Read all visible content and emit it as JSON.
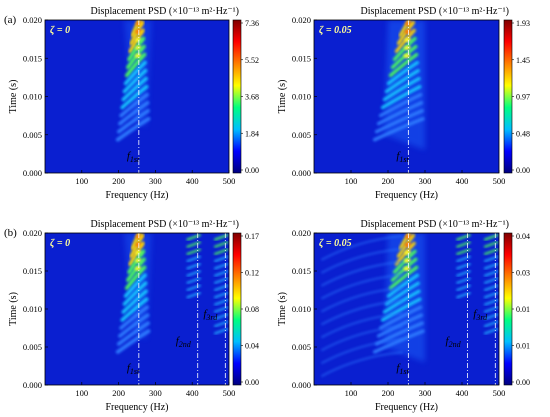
{
  "chart_data": [
    {
      "type": "heatmap",
      "panel_label": "(a)",
      "damping_label": "ζ = 0",
      "title": "Displacement PSD (×10⁻¹³ m²·Hz⁻¹)",
      "xlabel": "Frequency (Hz)",
      "ylabel": "Time (s)",
      "xlim": [
        0,
        500
      ],
      "ylim": [
        0,
        0.02
      ],
      "xticks": [
        "100",
        "200",
        "300",
        "400",
        "500"
      ],
      "yticks": [
        "0.000",
        "0.005",
        "0.010",
        "0.015",
        "0.020"
      ],
      "colorbar_ticks": [
        "7.36",
        "5.52",
        "3.68",
        "1.84",
        "0.00"
      ],
      "colorbar_max": 7.36,
      "modes": [
        {
          "label": "f",
          "sub": "1st",
          "freq": 255
        }
      ]
    },
    {
      "type": "heatmap",
      "panel_label": "",
      "damping_label": "ζ = 0.05",
      "title": "Displacement PSD (×10⁻¹³ m²·Hz⁻¹)",
      "xlabel": "Frequency (Hz)",
      "ylabel": "Time (s)",
      "xlim": [
        0,
        500
      ],
      "ylim": [
        0,
        0.02
      ],
      "xticks": [
        "100",
        "200",
        "300",
        "400",
        "500"
      ],
      "yticks": [
        "0.000",
        "0.005",
        "0.010",
        "0.015",
        "0.020"
      ],
      "colorbar_ticks": [
        "1.93",
        "1.45",
        "0.97",
        "0.48",
        "0.00"
      ],
      "colorbar_max": 1.93,
      "modes": [
        {
          "label": "f",
          "sub": "1st",
          "freq": 255
        }
      ]
    },
    {
      "type": "heatmap",
      "panel_label": "(b)",
      "damping_label": "ζ = 0",
      "title": "Displacement PSD (×10⁻¹³ m²·Hz⁻¹)",
      "xlabel": "Frequency (Hz)",
      "ylabel": "Time (s)",
      "xlim": [
        0,
        500
      ],
      "ylim": [
        0,
        0.02
      ],
      "xticks": [
        "100",
        "200",
        "300",
        "400",
        "500"
      ],
      "yticks": [
        "0.000",
        "0.005",
        "0.010",
        "0.015",
        "0.020"
      ],
      "colorbar_ticks": [
        "0.17",
        "0.12",
        "0.08",
        "0.04",
        "0.00"
      ],
      "colorbar_max": 0.17,
      "modes": [
        {
          "label": "f",
          "sub": "1st",
          "freq": 255
        },
        {
          "label": "f",
          "sub": "2nd",
          "freq": 415
        },
        {
          "label": "f",
          "sub": "3rd",
          "freq": 490
        }
      ]
    },
    {
      "type": "heatmap",
      "panel_label": "",
      "damping_label": "ζ = 0.05",
      "title": "Displacement PSD (×10⁻¹³ m²·Hz⁻¹)",
      "xlabel": "Frequency (Hz)",
      "ylabel": "Time (s)",
      "xlim": [
        0,
        500
      ],
      "ylim": [
        0,
        0.02
      ],
      "xticks": [
        "100",
        "200",
        "300",
        "400",
        "500"
      ],
      "yticks": [
        "0.000",
        "0.005",
        "0.010",
        "0.015",
        "0.020"
      ],
      "colorbar_ticks": [
        "0.04",
        "0.03",
        "0.01",
        "0.01",
        "0.00"
      ],
      "colorbar_max": 0.04,
      "modes": [
        {
          "label": "f",
          "sub": "1st",
          "freq": 255
        },
        {
          "label": "f",
          "sub": "2nd",
          "freq": 415
        },
        {
          "label": "f",
          "sub": "3rd",
          "freq": 490
        }
      ]
    }
  ],
  "colors": {
    "background_field": "#0a1fd0",
    "colormap": [
      "#00007f",
      "#0000ff",
      "#00bfff",
      "#00ff80",
      "#ffff00",
      "#ff7f00",
      "#ff0000",
      "#7f0000"
    ],
    "mode_line": "#ffffff"
  }
}
